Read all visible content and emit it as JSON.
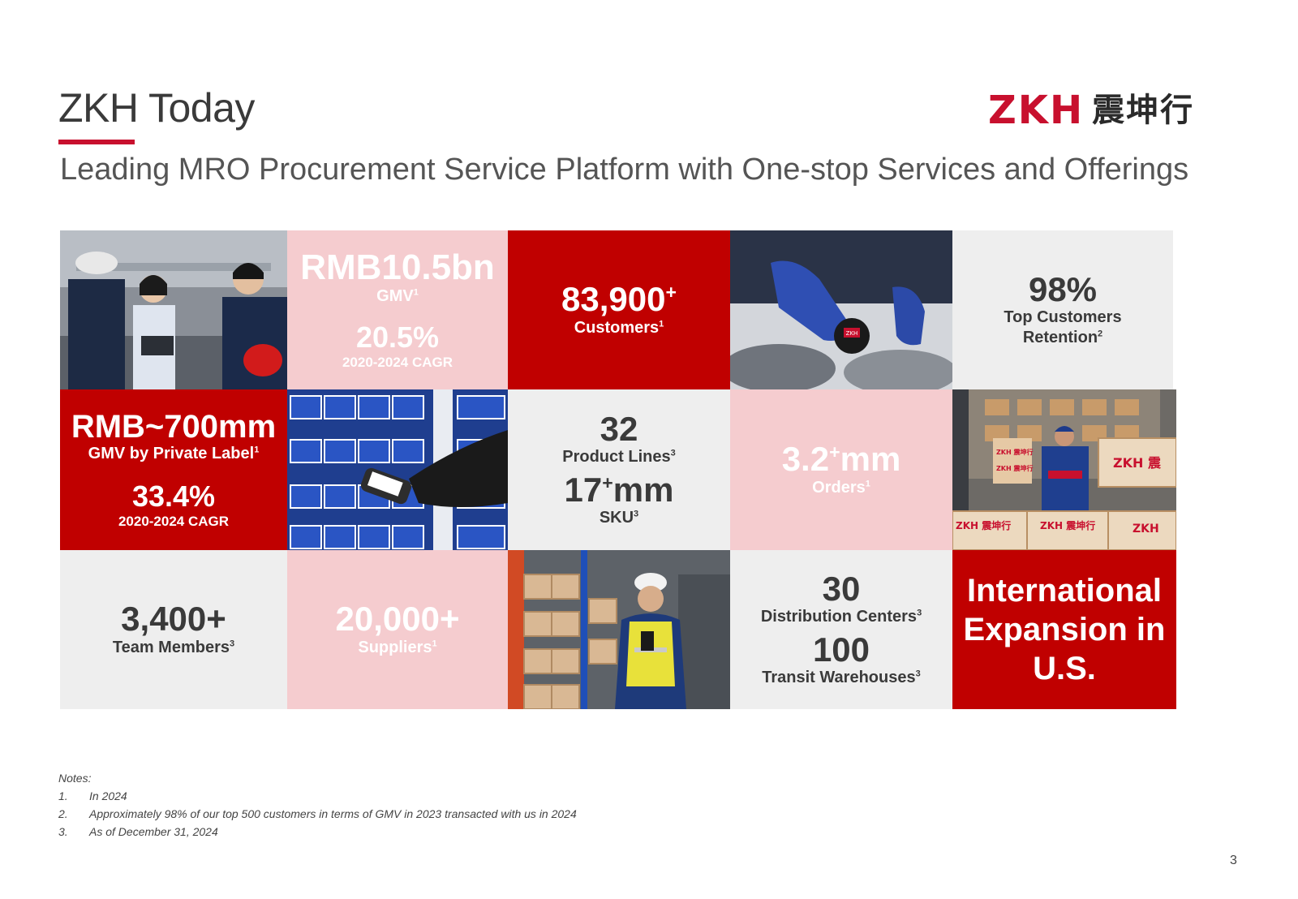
{
  "header": {
    "title": "ZKH Today",
    "subtitle": "Leading MRO Procurement Service Platform with One-stop Services and Offerings"
  },
  "logo": {
    "latin": "ZKH",
    "chinese": "震坤行"
  },
  "tiles": {
    "gmv": {
      "value": "RMB10.5bn",
      "label": "GMV",
      "label_sup": "1",
      "growth": "20.5%",
      "growth_label": "2020-2024 CAGR"
    },
    "customers": {
      "value": "83,900",
      "value_sup": "+",
      "label": "Customers",
      "label_sup": "1"
    },
    "retention": {
      "value": "98%",
      "label_line1": "Top Customers",
      "label_line2": "Retention",
      "label_sup": "2"
    },
    "private_label": {
      "value": "RMB~700mm",
      "label": "GMV by Private Label",
      "label_sup": "1",
      "growth": "33.4%",
      "growth_label": "2020-2024 CAGR"
    },
    "products": {
      "value1": "32",
      "label1": "Product Lines",
      "label1_sup": "3",
      "value2": "17",
      "value2_sup": "+",
      "value2_suffix": "mm",
      "label2": "SKU",
      "label2_sup": "3"
    },
    "orders": {
      "value": "3.2",
      "value_sup": "+",
      "value_suffix": "mm",
      "label": "Orders",
      "label_sup": "1"
    },
    "team": {
      "value": "3,400+",
      "label": "Team Members",
      "label_sup": "3"
    },
    "suppliers": {
      "value": "20,000+",
      "label": "Suppliers",
      "label_sup": "1"
    },
    "distribution": {
      "value1": "30",
      "label1": "Distribution Centers",
      "label1_sup": "3",
      "value2": "100",
      "label2": "Transit Warehouses",
      "label2_sup": "3"
    },
    "international": {
      "line1": "International",
      "line2": "Expansion in",
      "line3": "U.S."
    }
  },
  "photos": {
    "tape_badge": "ZKH",
    "box_labels": [
      "ZKH 震坤行",
      "ZKH 震坤行",
      "ZKH 震",
      "ZKH 震坤行",
      "ZKH 震坤行",
      "ZKH"
    ]
  },
  "notes": {
    "heading": "Notes:",
    "items": [
      {
        "num": "1.",
        "text": "In 2024"
      },
      {
        "num": "2.",
        "text": "Approximately 98% of our top 500 customers in terms of GMV in 2023 transacted with us in 2024"
      },
      {
        "num": "3.",
        "text": "As of December 31, 2024"
      }
    ]
  },
  "page_number": "3",
  "colors": {
    "brand_red": "#c00000",
    "pink": "#f5cccf",
    "grey": "#eeeeee",
    "dark_text": "#3a3a3a"
  }
}
